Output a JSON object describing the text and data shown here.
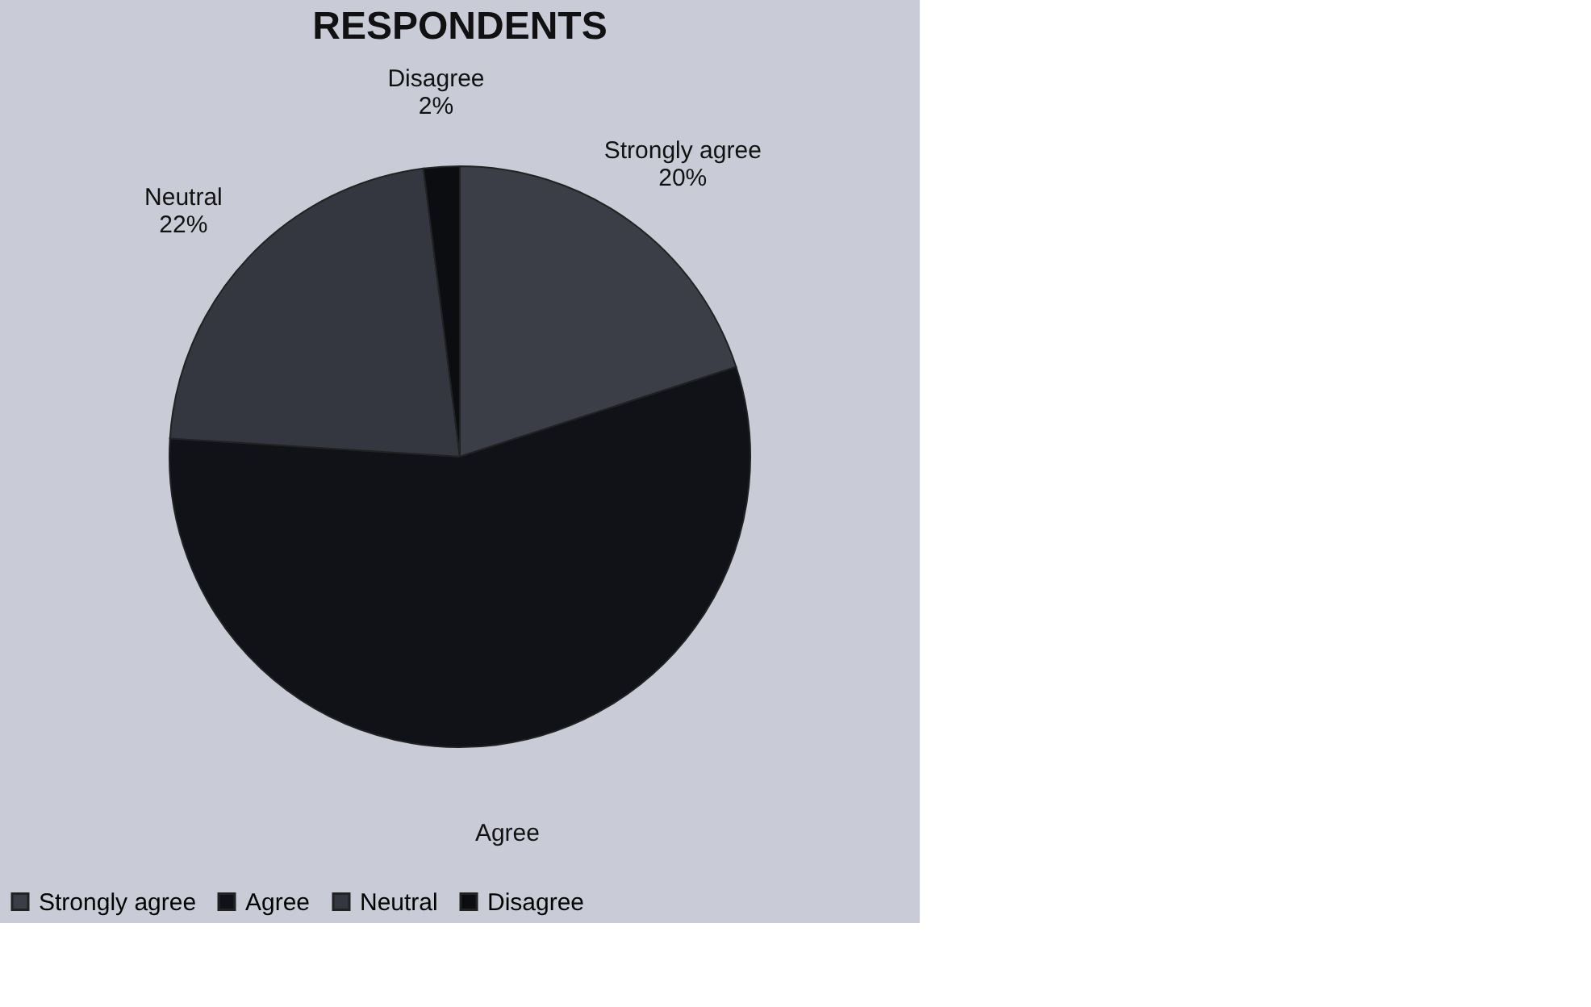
{
  "chart_data": {
    "type": "pie",
    "title": "RESPONDENTS",
    "categories": [
      "Strongly agree",
      "Agree",
      "Neutral",
      "Disagree"
    ],
    "values": [
      20,
      56,
      22,
      2
    ],
    "colors": [
      "#3b3e47",
      "#111218",
      "#34373f",
      "#0c0d11"
    ],
    "value_labels": [
      "Strongly agree\n20%",
      "Agree",
      "Neutral\n22%",
      "Disagree\n2%"
    ],
    "legend": "bottom"
  }
}
